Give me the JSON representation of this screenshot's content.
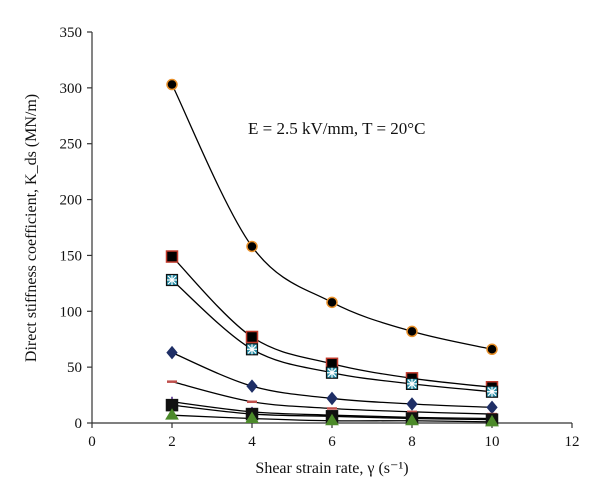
{
  "chart_data": {
    "type": "line",
    "title": "",
    "xlabel": "Shear strain rate, γ (s⁻¹)",
    "ylabel": "Direct stiffness coefficient, K_ds (MN/m)",
    "annotation": "E = 2.5 kV/mm, T = 20°C",
    "xlim": [
      0,
      12
    ],
    "ylim": [
      0,
      350
    ],
    "xticks": [
      "0",
      "2",
      "4",
      "6",
      "8",
      "10",
      "12"
    ],
    "yticks": [
      "0",
      "50",
      "100",
      "150",
      "200",
      "250",
      "300",
      "350"
    ],
    "grid": false,
    "legend": "none",
    "x": [
      2,
      4,
      6,
      8,
      10
    ],
    "series": [
      {
        "marker": "circle",
        "color": "#000000",
        "edge": "#e8902a",
        "values": [
          303,
          158,
          108,
          82,
          66
        ]
      },
      {
        "marker": "square",
        "color": "#000000",
        "edge": "#c0392b",
        "values": [
          149,
          77,
          53,
          40,
          32
        ]
      },
      {
        "marker": "star-square",
        "color": "#2a8fa8",
        "edge": "#111111",
        "values": [
          128,
          66,
          45,
          35,
          28
        ]
      },
      {
        "marker": "diamond",
        "color": "#1f2f66",
        "edge": "#1f2f66",
        "values": [
          63,
          33,
          22,
          17,
          14
        ]
      },
      {
        "marker": "dash",
        "color": "#c0504d",
        "edge": "#c0504d",
        "values": [
          37,
          19,
          13,
          10,
          8
        ]
      },
      {
        "marker": "cross",
        "color": "#7b5ea7",
        "edge": "#7b5ea7",
        "values": [
          19,
          10,
          7,
          5,
          4
        ]
      },
      {
        "marker": "square",
        "color": "#111111",
        "edge": "#111111",
        "values": [
          16,
          8,
          6,
          4,
          3
        ]
      },
      {
        "marker": "triangle",
        "color": "#4c8a2a",
        "edge": "#4c8a2a",
        "values": [
          7,
          4,
          2,
          2,
          1
        ]
      }
    ]
  }
}
